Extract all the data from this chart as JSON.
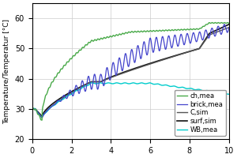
{
  "title": "",
  "ylabel": "Temperature/Temperatur [°C]",
  "xlabel": "",
  "xlim": [
    0,
    10
  ],
  "ylim": [
    20,
    65
  ],
  "yticks": [
    20,
    30,
    40,
    50,
    60
  ],
  "xticks": [
    0,
    2,
    4,
    6,
    8,
    10
  ],
  "legend_labels": [
    "ch,mea",
    "brick,mea",
    "C,sim",
    "surf,sim",
    "WB,mea"
  ],
  "colors": {
    "ch_mea": "#4aaa4a",
    "brick_mea": "#4444cc",
    "C_sim": "#555555",
    "surf_sim": "#111111",
    "WB_mea": "#00cccc"
  },
  "background": "#ffffff",
  "grid_color": "#cccccc"
}
